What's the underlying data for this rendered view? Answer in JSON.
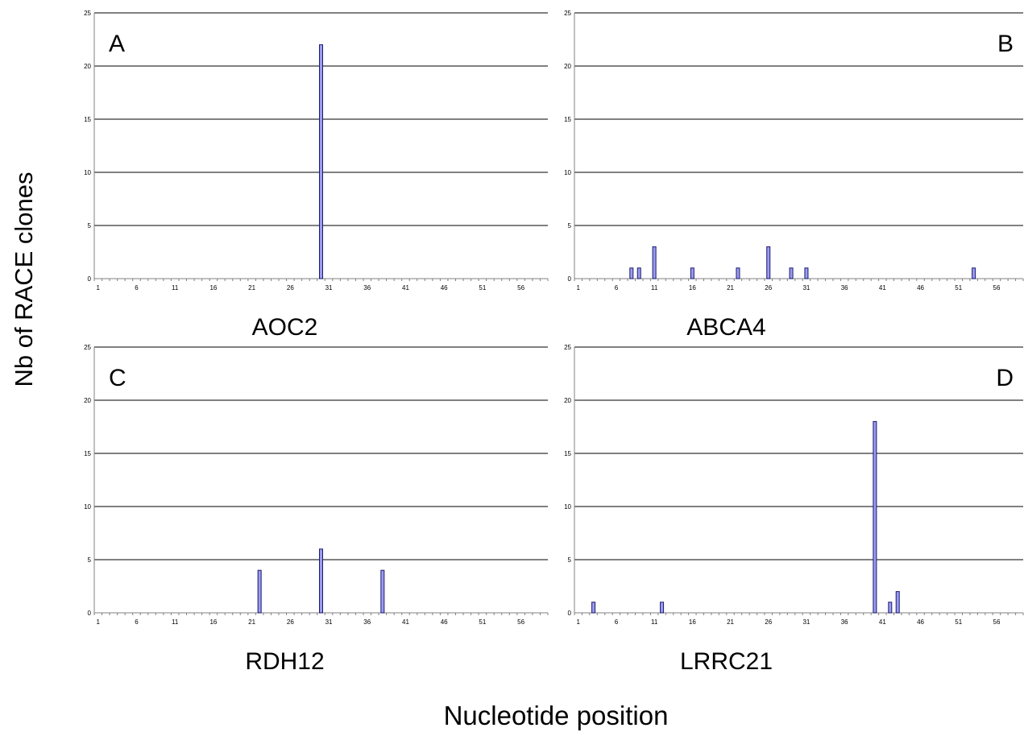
{
  "figure": {
    "ylabel": "Nb of RACE clones",
    "xlabel": "Nucleotide position"
  },
  "style": {
    "bar_fill": "#9b9bf0",
    "bar_stroke": "#1a1a6e",
    "grid_color": "#000000",
    "axis_color": "#808080"
  },
  "chart_data": [
    {
      "type": "bar",
      "panel_label": "A",
      "gene": "AOC2",
      "x_range": [
        1,
        59
      ],
      "x_ticks": [
        1,
        6,
        11,
        16,
        21,
        26,
        31,
        36,
        41,
        46,
        51,
        56
      ],
      "ylim": [
        0,
        25
      ],
      "y_ticks": [
        0,
        5,
        10,
        15,
        20,
        25
      ],
      "grid": true,
      "bars": [
        {
          "x": 30,
          "y": 22
        }
      ]
    },
    {
      "type": "bar",
      "panel_label": "B",
      "gene": "ABCA4",
      "x_range": [
        1,
        59
      ],
      "x_ticks": [
        1,
        6,
        11,
        16,
        21,
        26,
        31,
        36,
        41,
        46,
        51,
        56
      ],
      "ylim": [
        0,
        25
      ],
      "y_ticks": [
        0,
        5,
        10,
        15,
        20,
        25
      ],
      "grid": true,
      "bars": [
        {
          "x": 8,
          "y": 1
        },
        {
          "x": 9,
          "y": 1
        },
        {
          "x": 11,
          "y": 3
        },
        {
          "x": 16,
          "y": 1
        },
        {
          "x": 22,
          "y": 1
        },
        {
          "x": 26,
          "y": 3
        },
        {
          "x": 29,
          "y": 1
        },
        {
          "x": 31,
          "y": 1
        },
        {
          "x": 53,
          "y": 1
        }
      ]
    },
    {
      "type": "bar",
      "panel_label": "C",
      "gene": "RDH12",
      "x_range": [
        1,
        59
      ],
      "x_ticks": [
        1,
        6,
        11,
        16,
        21,
        26,
        31,
        36,
        41,
        46,
        51,
        56
      ],
      "ylim": [
        0,
        25
      ],
      "y_ticks": [
        0,
        5,
        10,
        15,
        20,
        25
      ],
      "grid": true,
      "bars": [
        {
          "x": 22,
          "y": 4
        },
        {
          "x": 30,
          "y": 6
        },
        {
          "x": 38,
          "y": 4
        }
      ]
    },
    {
      "type": "bar",
      "panel_label": "D",
      "gene": "LRRC21",
      "x_range": [
        1,
        59
      ],
      "x_ticks": [
        1,
        6,
        11,
        16,
        21,
        26,
        31,
        36,
        41,
        46,
        51,
        56
      ],
      "ylim": [
        0,
        25
      ],
      "y_ticks": [
        0,
        5,
        10,
        15,
        20,
        25
      ],
      "grid": true,
      "bars": [
        {
          "x": 3,
          "y": 1
        },
        {
          "x": 12,
          "y": 1
        },
        {
          "x": 40,
          "y": 18
        },
        {
          "x": 42,
          "y": 1
        },
        {
          "x": 43,
          "y": 2
        }
      ]
    }
  ]
}
